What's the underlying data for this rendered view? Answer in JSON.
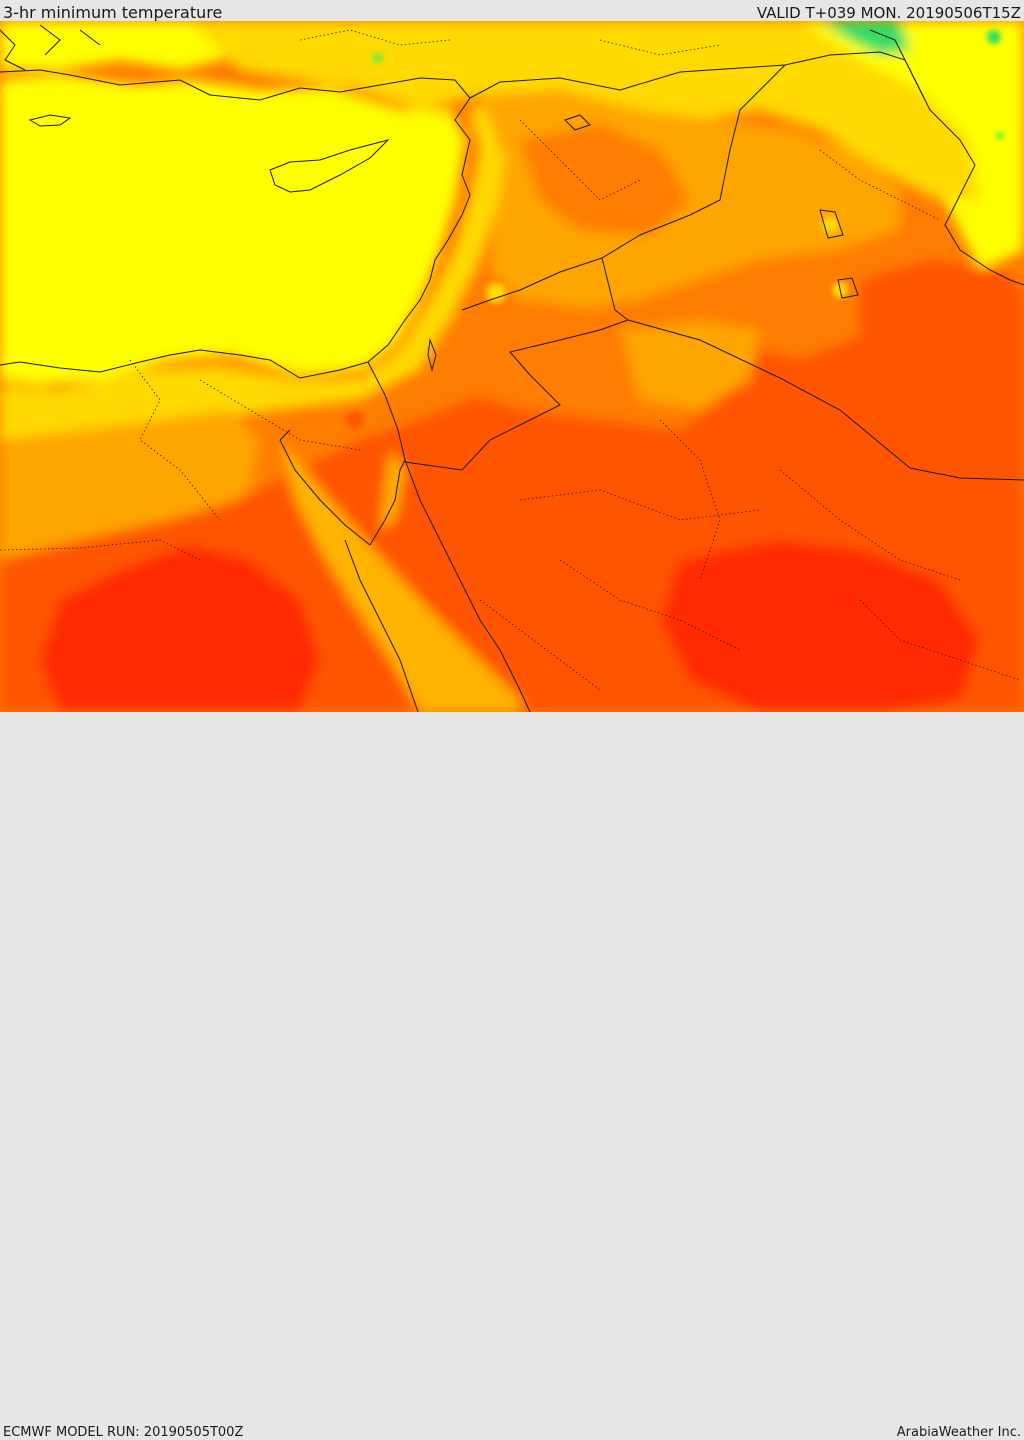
{
  "header": {
    "title": "3-hr minimum temperature",
    "valid": "VALID T+039 MON. 20190506T15Z"
  },
  "footer": {
    "model_run": "ECMWF MODEL RUN: 20190505T00Z",
    "credit": "ArabiaWeather Inc."
  },
  "map": {
    "region": "Eastern Mediterranean / Middle East",
    "palette": {
      "cool_green": "#33dd66",
      "light_yellow": "#ffff00",
      "yellow_orange": "#ffd900",
      "orange": "#ffa500",
      "dark_orange": "#ff7d00",
      "red_orange": "#ff5500",
      "red": "#ff2a00",
      "sea_warm": "#ffb400",
      "boundary": "#1a1a1a"
    }
  }
}
